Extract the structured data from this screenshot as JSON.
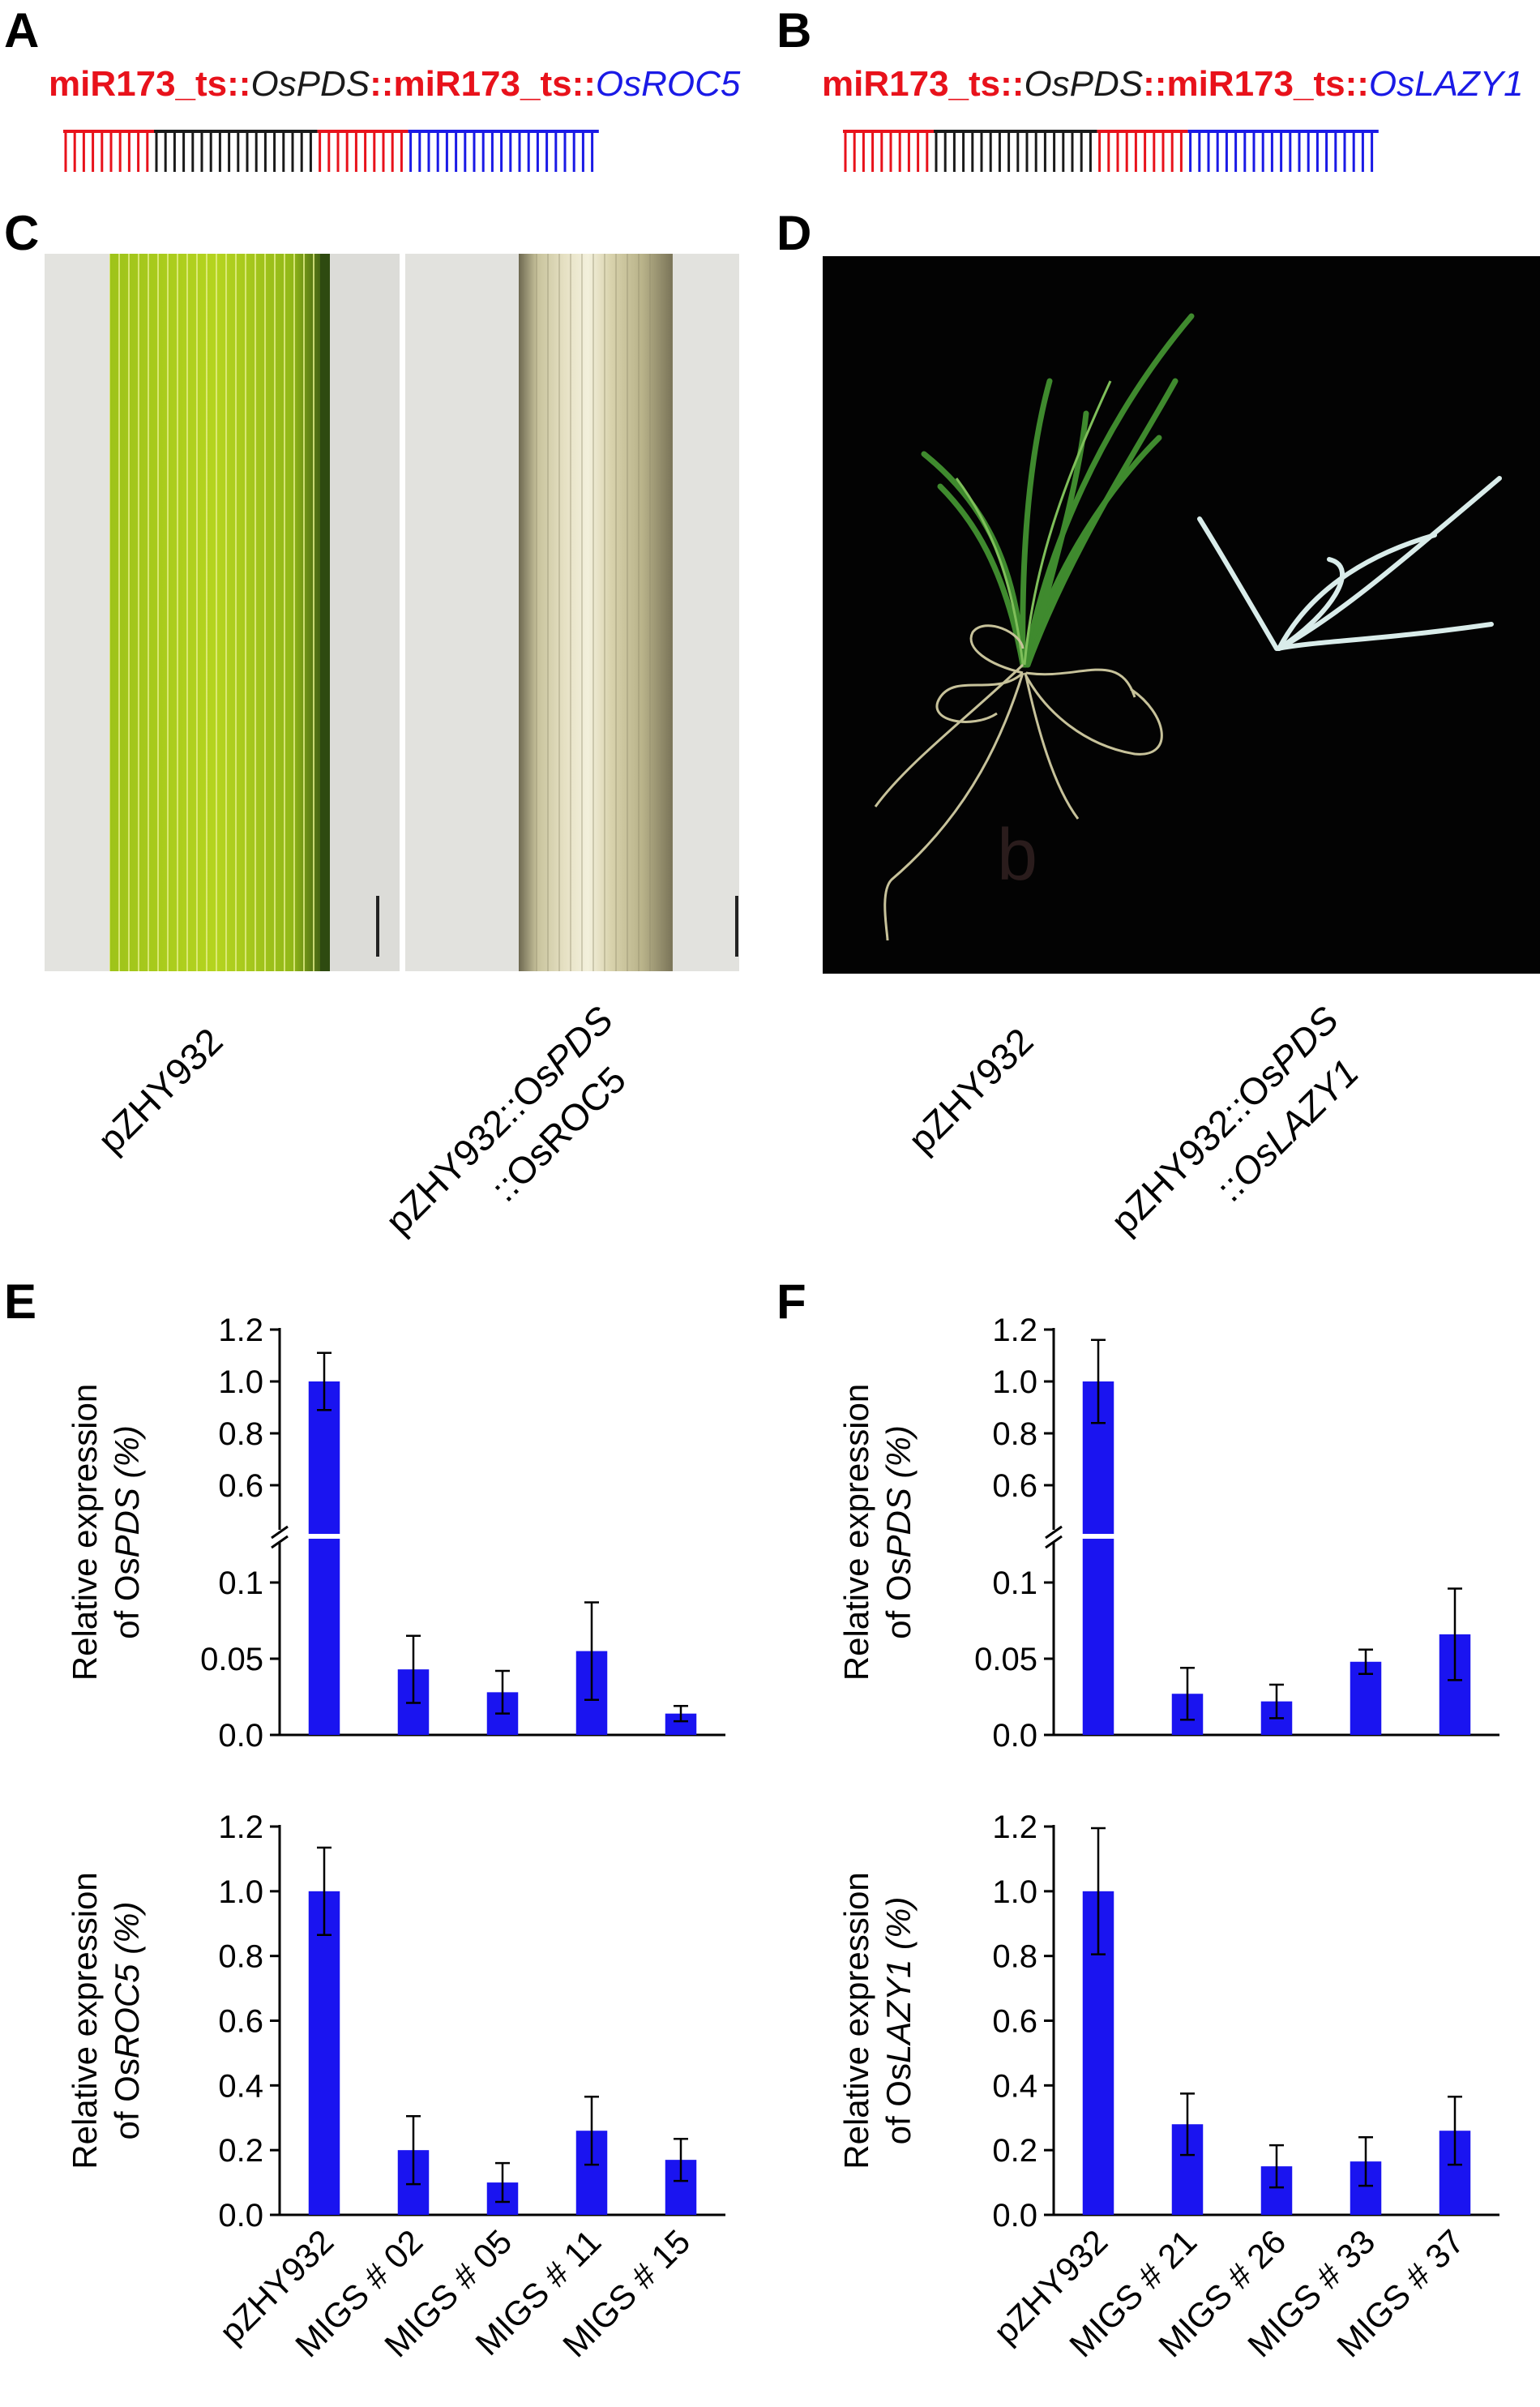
{
  "panels": {
    "A": "A",
    "B": "B",
    "C": "C",
    "D": "D",
    "E": "E",
    "F": "F"
  },
  "constructs": {
    "A": {
      "p1": "miR173_ts::",
      "p2": "OsPDS",
      "p3": "::miR173_ts::",
      "p4": "OsROC5"
    },
    "B": {
      "p1": "miR173_ts::",
      "p2": "OsPDS",
      "p3": "::miR173_ts::",
      "p4": "OsLAZY1"
    }
  },
  "photo_labels": {
    "c1": "pZHY932",
    "c2_line1_a": "pZHY932::Os",
    "c2_line1_b": "PDS",
    "c2_line2_a": "::",
    "c2_line2_b": "OsROC5",
    "d1": "pZHY932",
    "d2_line1_a": "pZHY932::Os",
    "d2_line1_b": "PDS",
    "d2_line2_a": "::",
    "d2_line2_b": "OsLAZY1",
    "d_watermark": "b"
  },
  "colors": {
    "bar": "#1a14f0",
    "construct_red": "#e8121b",
    "construct_blue": "#1a1ae6",
    "construct_black": "#1a1a1a"
  },
  "chart_data": [
    {
      "panel": "E-top",
      "type": "bar",
      "axis_break": true,
      "ylabel_1": "Relative expression",
      "ylabel_2a": "of Os",
      "ylabel_2b": "PDS",
      "ylabel_2c": " (%)",
      "categories": [
        "pZHY932",
        "MIGS # 02",
        "MIGS # 05",
        "MIGS # 11",
        "MIGS # 15"
      ],
      "values": [
        1.0,
        0.043,
        0.028,
        0.055,
        0.014
      ],
      "errors": [
        0.11,
        0.022,
        0.014,
        0.032,
        0.005
      ],
      "yticks_lower": [
        "0.0",
        "0.05",
        "0.1"
      ],
      "yticks_upper": [
        "0.6",
        "0.8",
        "1.0",
        "1.2"
      ]
    },
    {
      "panel": "E-bottom",
      "type": "bar",
      "ylabel_1": "Relative expression",
      "ylabel_2a": "of Os",
      "ylabel_2b": "ROC5",
      "ylabel_2c": " (%)",
      "categories": [
        "pZHY932",
        "MIGS # 02",
        "MIGS # 05",
        "MIGS # 11",
        "MIGS # 15"
      ],
      "values": [
        1.0,
        0.2,
        0.1,
        0.26,
        0.17
      ],
      "errors": [
        0.135,
        0.105,
        0.06,
        0.105,
        0.065
      ],
      "yticks": [
        "0.0",
        "0.2",
        "0.4",
        "0.6",
        "0.8",
        "1.0",
        "1.2"
      ],
      "ylim": [
        0,
        1.2
      ]
    },
    {
      "panel": "F-top",
      "type": "bar",
      "axis_break": true,
      "ylabel_1": "Relative expression",
      "ylabel_2a": "of Os",
      "ylabel_2b": "PDS",
      "ylabel_2c": " (%)",
      "categories": [
        "pZHY932",
        "MIGS # 21",
        "MIGS # 26",
        "MIGS # 33",
        "MIGS # 37"
      ],
      "values": [
        1.0,
        0.027,
        0.022,
        0.048,
        0.066
      ],
      "errors": [
        0.16,
        0.017,
        0.011,
        0.008,
        0.03
      ],
      "yticks_lower": [
        "0.0",
        "0.05",
        "0.1"
      ],
      "yticks_upper": [
        "0.6",
        "0.8",
        "1.0",
        "1.2"
      ]
    },
    {
      "panel": "F-bottom",
      "type": "bar",
      "ylabel_1": "Relative expression",
      "ylabel_2a": "of Os",
      "ylabel_2b": "LAZY1",
      "ylabel_2c": " (%)",
      "categories": [
        "pZHY932",
        "MIGS # 21",
        "MIGS # 26",
        "MIGS # 33",
        "MIGS # 37"
      ],
      "values": [
        1.0,
        0.28,
        0.15,
        0.165,
        0.26
      ],
      "errors": [
        0.195,
        0.095,
        0.065,
        0.075,
        0.105
      ],
      "yticks": [
        "0.0",
        "0.2",
        "0.4",
        "0.6",
        "0.8",
        "1.0",
        "1.2"
      ],
      "ylim": [
        0,
        1.2
      ]
    }
  ]
}
